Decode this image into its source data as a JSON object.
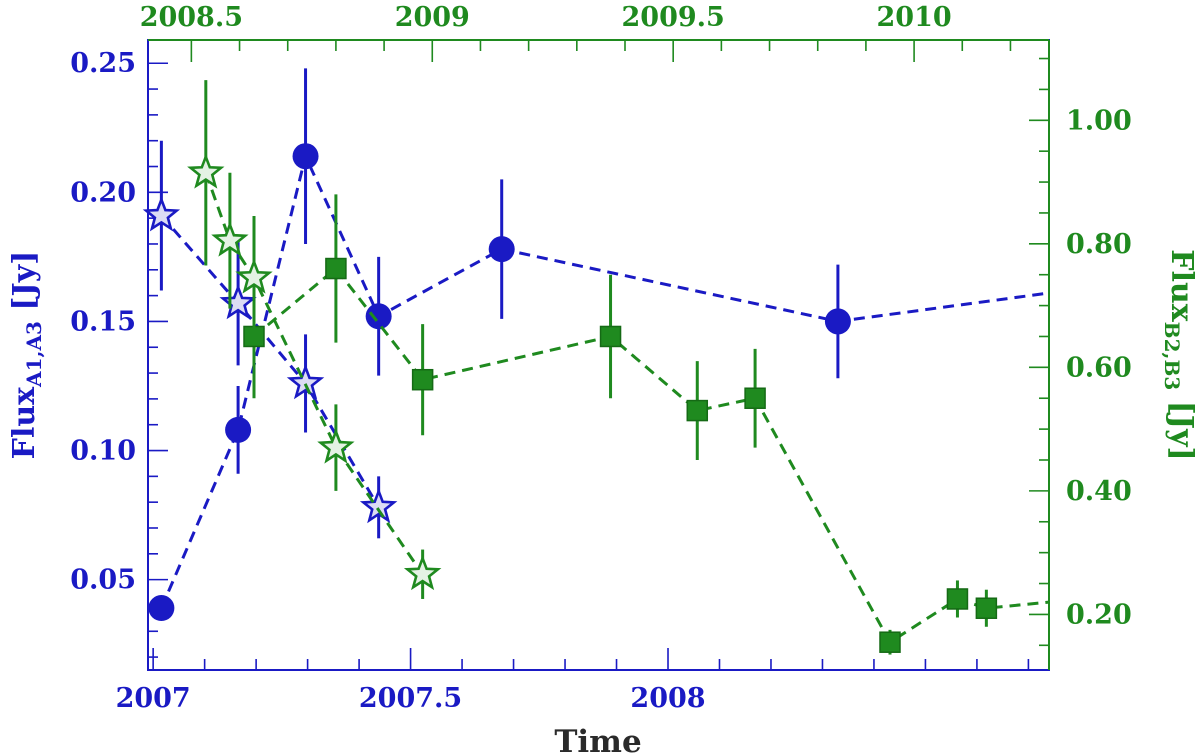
{
  "chart_data": {
    "type": "scatter",
    "xlabel": "Time",
    "ylabel_left": {
      "main": "Flux",
      "sub": "A1,A3",
      "unit": "[Jy]"
    },
    "ylabel_right": {
      "main": "Flux",
      "sub": "B2,B3",
      "unit": "[Jy]"
    },
    "x_bottom": {
      "range": [
        2006.99,
        2008.74
      ],
      "ticks": [
        "2007",
        "2007.5",
        "2008"
      ],
      "tick_values": [
        2007,
        2007.5,
        2008
      ],
      "minor_step": 0.1
    },
    "x_top": {
      "range": [
        2008.41,
        2010.28
      ],
      "ticks": [
        "2008.5",
        "2009",
        "2009.5",
        "2010"
      ],
      "tick_values": [
        2008.5,
        2009,
        2009.5,
        2010
      ],
      "minor_step": 0.1
    },
    "y_left": {
      "range": [
        0.015,
        0.259
      ],
      "ticks": [
        "0.05",
        "0.10",
        "0.15",
        "0.20",
        "0.25"
      ],
      "tick_values": [
        0.05,
        0.1,
        0.15,
        0.2,
        0.25
      ],
      "minor_step": 0.01
    },
    "y_right": {
      "range": [
        0.11,
        1.13
      ],
      "ticks": [
        "0.20",
        "0.40",
        "0.60",
        "0.80",
        "1.00"
      ],
      "tick_values": [
        0.2,
        0.4,
        0.6,
        0.8,
        1.0
      ],
      "minor_step": 0.05
    },
    "colors": {
      "blue": "#1a1ac4",
      "green": "#1f8a1f",
      "star_fill": "#dcdcf4",
      "green_star_fill": "#e4f2e4"
    },
    "series": [
      {
        "axes": "bottom-left",
        "marker": "circle",
        "color": "#1a1ac4",
        "x": [
          2007.016,
          2007.165,
          2007.296,
          2007.438,
          2007.677,
          2008.33,
          2008.74
        ],
        "y": [
          0.039,
          0.108,
          0.214,
          0.152,
          0.178,
          0.15,
          0.161
        ],
        "yerr": [
          0,
          0.017,
          0.034,
          0.023,
          0.027,
          0.022,
          0
        ]
      },
      {
        "axes": "bottom-left",
        "marker": "star",
        "color": "#1a1ac4",
        "x": [
          2007.016,
          2007.165,
          2007.296,
          2007.438
        ],
        "y": [
          0.191,
          0.157,
          0.126,
          0.078
        ],
        "yerr": [
          0.029,
          0.024,
          0.019,
          0.012
        ]
      },
      {
        "axes": "top-right",
        "marker": "square",
        "color": "#1f8a1f",
        "x": [
          2008.63,
          2008.8,
          2008.98,
          2009.37,
          2009.55,
          2009.67,
          2009.95,
          2010.09,
          2010.15,
          2010.28
        ],
        "y": [
          0.65,
          0.76,
          0.58,
          0.65,
          0.53,
          0.55,
          0.155,
          0.225,
          0.21,
          0.22
        ],
        "yerr": [
          0.1,
          0.12,
          0.09,
          0.1,
          0.08,
          0.08,
          0.02,
          0.03,
          0.03,
          0
        ]
      },
      {
        "axes": "top-right",
        "marker": "star",
        "color": "#1f8a1f",
        "x": [
          2008.53,
          2008.58,
          2008.63,
          2008.8,
          2008.98
        ],
        "y": [
          0.915,
          0.805,
          0.745,
          0.47,
          0.265
        ],
        "yerr": [
          0.15,
          0.11,
          0.1,
          0.07,
          0.04
        ]
      }
    ]
  }
}
